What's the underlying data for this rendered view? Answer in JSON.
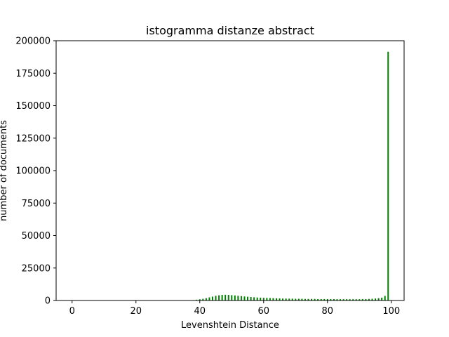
{
  "chart_data": {
    "type": "bar",
    "title": "istogramma distanze abstract",
    "xlabel": "Levenshtein Distance",
    "ylabel": "number of documents",
    "xlim": [
      -5,
      104
    ],
    "ylim": [
      0,
      200000
    ],
    "xticks": [
      0,
      20,
      40,
      60,
      80,
      100
    ],
    "yticks": [
      0,
      25000,
      50000,
      75000,
      100000,
      125000,
      150000,
      175000,
      200000
    ],
    "grid": false,
    "bar_color": "#008000",
    "x": [
      38,
      39,
      40,
      41,
      42,
      43,
      44,
      45,
      46,
      47,
      48,
      49,
      50,
      51,
      52,
      53,
      54,
      55,
      56,
      57,
      58,
      59,
      60,
      61,
      62,
      63,
      64,
      65,
      66,
      67,
      68,
      69,
      70,
      71,
      72,
      73,
      74,
      75,
      76,
      77,
      78,
      79,
      80,
      81,
      82,
      83,
      84,
      85,
      86,
      87,
      88,
      89,
      90,
      91,
      92,
      93,
      94,
      95,
      96,
      97,
      98,
      99
    ],
    "values": [
      300,
      600,
      900,
      1300,
      1800,
      2400,
      3000,
      3600,
      4000,
      4300,
      4400,
      4300,
      4100,
      3900,
      3600,
      3400,
      3100,
      2900,
      2700,
      2500,
      2300,
      2200,
      2100,
      2000,
      1900,
      1800,
      1700,
      1600,
      1500,
      1500,
      1400,
      1400,
      1300,
      1300,
      1300,
      1200,
      1200,
      1200,
      1200,
      1100,
      1100,
      1100,
      1100,
      1100,
      1100,
      1000,
      1000,
      1000,
      1000,
      1000,
      1000,
      1000,
      1000,
      1100,
      1100,
      1200,
      1300,
      1500,
      1800,
      2200,
      3500,
      191500
    ]
  }
}
